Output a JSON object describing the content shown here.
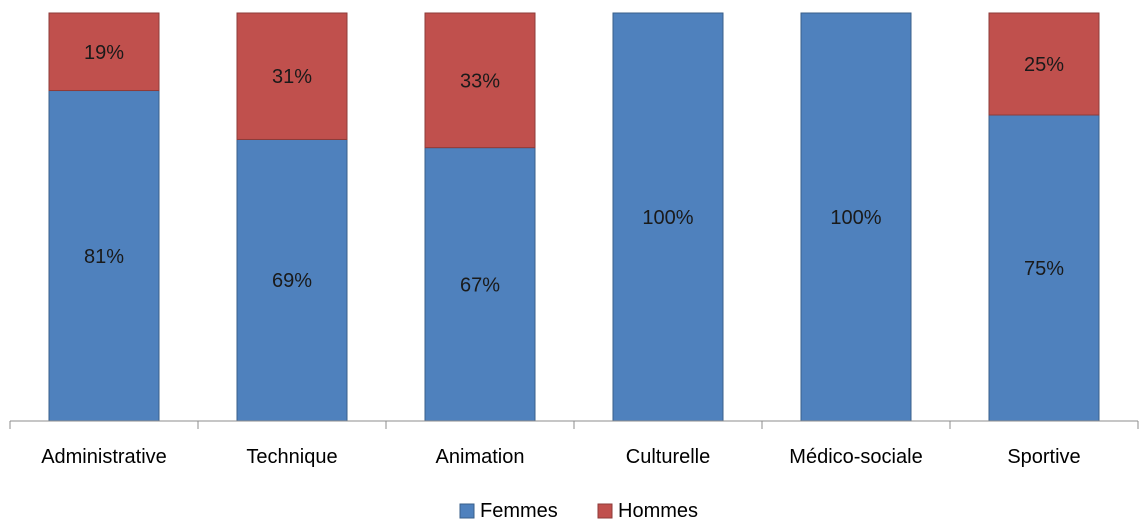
{
  "chart_data": {
    "type": "bar",
    "stacked": true,
    "categories": [
      "Administrative",
      "Technique",
      "Animation",
      "Culturelle",
      "Médico-sociale",
      "Sportive"
    ],
    "series": [
      {
        "name": "Femmes",
        "color": "#4f81bd",
        "values": [
          81,
          69,
          67,
          100,
          100,
          75
        ],
        "labels": [
          "81%",
          "69%",
          "67%",
          "100%",
          "100%",
          "75%"
        ]
      },
      {
        "name": "Hommes",
        "color": "#c0504d",
        "values": [
          19,
          31,
          33,
          0,
          0,
          25
        ],
        "labels": [
          "19%",
          "31%",
          "33%",
          "",
          "",
          "25%"
        ]
      }
    ],
    "ylim": [
      0,
      100
    ],
    "unit": "%",
    "grid": false,
    "legend": "bottom-center"
  }
}
